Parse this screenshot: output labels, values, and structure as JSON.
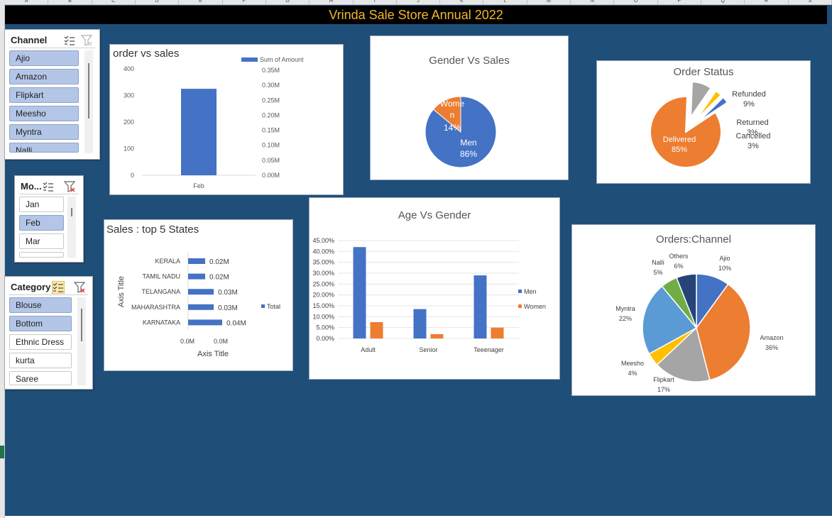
{
  "sheet": {
    "columns": [
      "A",
      "B",
      "C",
      "D",
      "E",
      "F",
      "G",
      "H",
      "I",
      "J",
      "K",
      "L",
      "M",
      "N",
      "O",
      "P",
      "Q",
      "R",
      "S"
    ],
    "title": "Vrinda Sale Store Annual 2022"
  },
  "colors": {
    "blue": "#4472c4",
    "orange": "#ed7d31",
    "gray": "#a5a5a5",
    "yellow": "#ffc000",
    "lightblue": "#5b9bd5",
    "green": "#70ad47",
    "navy": "#264478",
    "background": "#1f4e79",
    "title_text": "#f4b62a"
  },
  "slicers": {
    "channel": {
      "title": "Channel",
      "items": [
        {
          "label": "Ajio",
          "selected": true
        },
        {
          "label": "Amazon",
          "selected": true
        },
        {
          "label": "Flipkart",
          "selected": true
        },
        {
          "label": "Meesho",
          "selected": true
        },
        {
          "label": "Myntra",
          "selected": true
        },
        {
          "label": "Nalli",
          "selected": true
        }
      ]
    },
    "month": {
      "title": "Mo...",
      "items": [
        {
          "label": "Jan",
          "selected": false
        },
        {
          "label": "Feb",
          "selected": true
        },
        {
          "label": "Mar",
          "selected": false
        }
      ]
    },
    "category": {
      "title": "Category",
      "items": [
        {
          "label": "Blouse",
          "selected": true
        },
        {
          "label": "Bottom",
          "selected": true
        },
        {
          "label": "Ethnic Dress",
          "selected": false
        },
        {
          "label": "kurta",
          "selected": false
        },
        {
          "label": "Saree",
          "selected": false
        }
      ]
    }
  },
  "chart_data": [
    {
      "id": "order-vs-sales",
      "type": "bar",
      "title": "order vs sales",
      "categories": [
        "Feb"
      ],
      "series": [
        {
          "name": "Sum of Amount",
          "values": [
            325
          ]
        }
      ],
      "ylim": [
        0,
        400
      ],
      "yticks": [
        "0",
        "100",
        "200",
        "300",
        "400"
      ],
      "y2ticks": [
        "0.00M",
        "0.05M",
        "0.10M",
        "0.15M",
        "0.20M",
        "0.25M",
        "0.30M",
        "0.35M"
      ],
      "legend": "top-right"
    },
    {
      "id": "gender-vs-sales",
      "type": "pie",
      "title": "Gender Vs Sales",
      "slices": [
        {
          "name": "Men",
          "value": 86,
          "label": "86%"
        },
        {
          "name": "Women",
          "value": 14,
          "label": "14%"
        }
      ],
      "slice_label_name_parts": {
        "Women": [
          "Wome",
          "n"
        ]
      }
    },
    {
      "id": "order-status",
      "type": "pie",
      "title": "Order Status",
      "slices": [
        {
          "name": "Delivered",
          "value": 85,
          "label": "85%"
        },
        {
          "name": "Refunded",
          "value": 9,
          "label": "9%"
        },
        {
          "name": "Returned",
          "value": 3,
          "label": "3%"
        },
        {
          "name": "Cancelled",
          "value": 3,
          "label": "3%"
        }
      ]
    },
    {
      "id": "sales-top-5-states",
      "type": "bar",
      "orientation": "horizontal",
      "title": "Sales : top 5 States",
      "categories": [
        "KERALA",
        "TAMIL NADU",
        "TELANGANA",
        "MAHARASHTRA",
        "KARNATAKA"
      ],
      "series": [
        {
          "name": "Total",
          "values": [
            0.02,
            0.02,
            0.03,
            0.03,
            0.04
          ],
          "labels": [
            "0.02M",
            "0.02M",
            "0.03M",
            "0.03M",
            "0.04M"
          ]
        }
      ],
      "xticks": [
        "0.0M",
        "0.0M"
      ],
      "xlabel": "Axis Title",
      "ylabel": "Axis Title",
      "legend": "right"
    },
    {
      "id": "age-vs-gender",
      "type": "bar",
      "title": "Age Vs Gender",
      "categories": [
        "Adult",
        "Senior",
        "Teeenager"
      ],
      "series": [
        {
          "name": "Men",
          "values": [
            42,
            13.5,
            29
          ]
        },
        {
          "name": "Women",
          "values": [
            7.5,
            2,
            5
          ]
        }
      ],
      "ylim": [
        0,
        45
      ],
      "yticks": [
        "0.00%",
        "5.00%",
        "10.00%",
        "15.00%",
        "20.00%",
        "25.00%",
        "30.00%",
        "35.00%",
        "40.00%",
        "45.00%"
      ],
      "legend": "right"
    },
    {
      "id": "orders-channel",
      "type": "pie",
      "title": "Orders:Channel",
      "slices": [
        {
          "name": "Ajio",
          "value": 10,
          "label": "10%"
        },
        {
          "name": "Amazon",
          "value": 36,
          "label": "36%"
        },
        {
          "name": "Flipkart",
          "value": 17,
          "label": "17%"
        },
        {
          "name": "Meesho",
          "value": 4,
          "label": "4%"
        },
        {
          "name": "Myntra",
          "value": 22,
          "label": "22%"
        },
        {
          "name": "Nalli",
          "value": 5,
          "label": "5%"
        },
        {
          "name": "Others",
          "value": 6,
          "label": "6%"
        }
      ]
    }
  ]
}
